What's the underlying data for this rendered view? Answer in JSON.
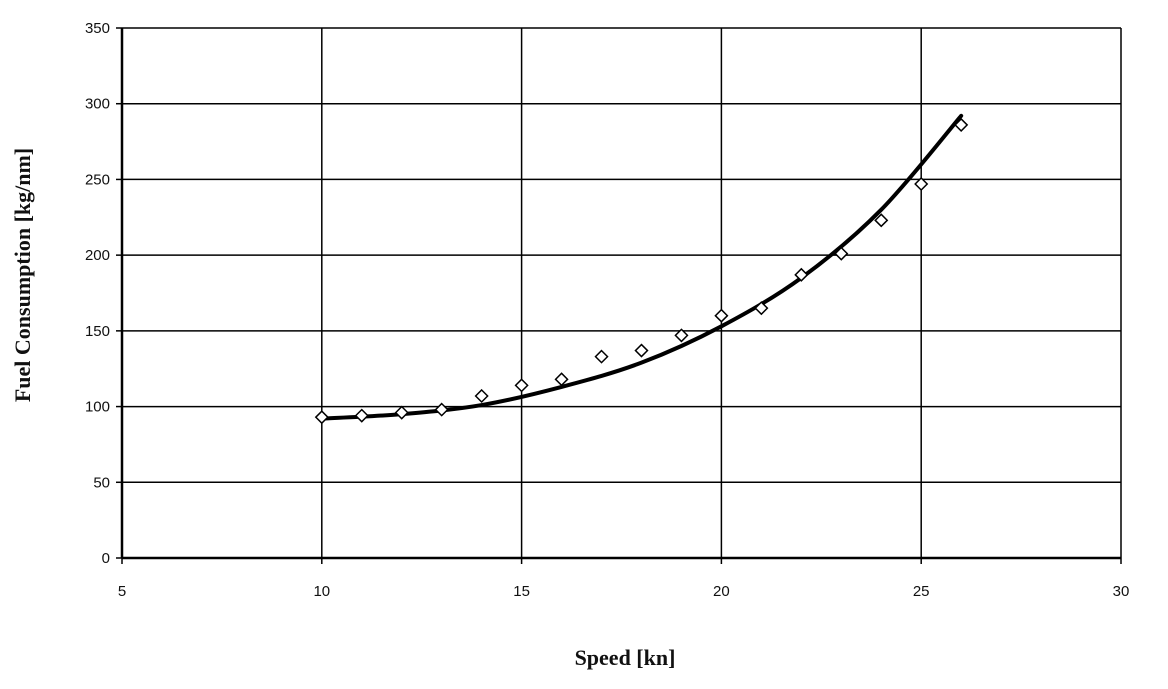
{
  "chart_data": {
    "type": "scatter",
    "title": "",
    "xlabel": "Speed [kn]",
    "ylabel": "Fuel Consumption [kg/nm]",
    "xlim": [
      5,
      30
    ],
    "ylim": [
      0,
      350
    ],
    "xticks": [
      5,
      10,
      15,
      20,
      25,
      30
    ],
    "yticks": [
      0,
      50,
      100,
      150,
      200,
      250,
      300,
      350
    ],
    "grid": true,
    "legend": "none",
    "series": [
      {
        "kind": "markers",
        "marker": "diamond",
        "x": [
          10,
          11,
          12,
          13,
          14,
          15,
          16,
          17,
          18,
          19,
          20,
          21,
          22,
          23,
          24,
          25,
          26
        ],
        "y": [
          93,
          94,
          96,
          98,
          107,
          114,
          118,
          133,
          137,
          147,
          160,
          165,
          187,
          201,
          223,
          247,
          286
        ]
      },
      {
        "kind": "trendline",
        "x": [
          10,
          12,
          14,
          16,
          18,
          20,
          22,
          24,
          26
        ],
        "y": [
          92,
          95,
          101,
          113,
          129,
          153,
          185,
          230,
          292
        ]
      }
    ],
    "colors": {
      "line": "#000000",
      "grid": "#000000",
      "marker_fill": "#ffffff",
      "marker_stroke": "#000000"
    }
  }
}
